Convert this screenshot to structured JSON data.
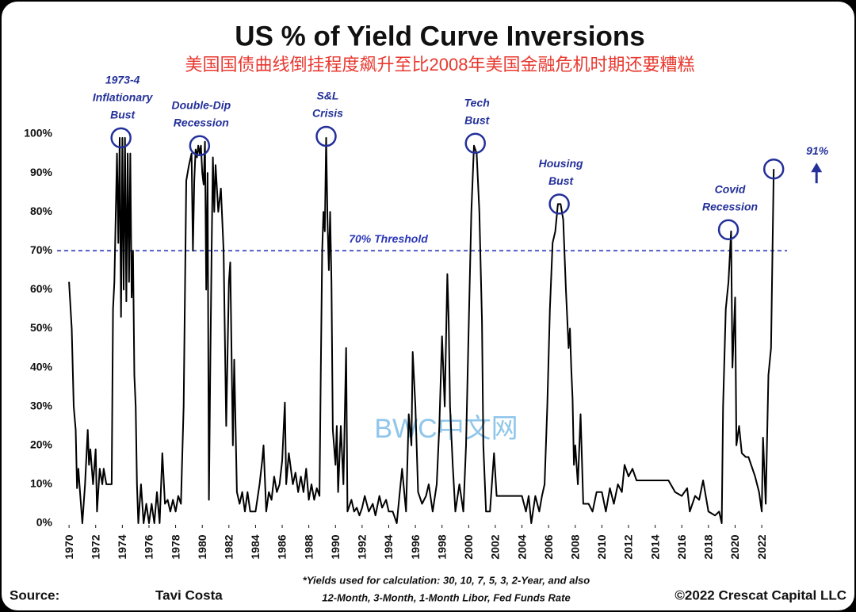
{
  "chart_data": {
    "type": "line",
    "title": "US % of Yield Curve Inversions",
    "subtitle": "美国国债曲线倒挂程度飙升至比2008年美国金融危机时期还要糟糕",
    "watermark": "BWC中文网",
    "source_label": "Source:",
    "author": "Tavi Costa",
    "footnote": [
      "*Yields used for calculation: 30, 10, 7, 5, 3, 2-Year, and also",
      "12-Month, 3-Month, 1-Month Libor, Fed Funds Rate"
    ],
    "copyright": "©2022 Crescat Capital LLC",
    "xlim": [
      1969.1,
      2023.9
    ],
    "xticks": [
      1970,
      1972,
      1974,
      1976,
      1978,
      1980,
      1982,
      1984,
      1986,
      1988,
      1990,
      1992,
      1994,
      1996,
      1998,
      2000,
      2002,
      2004,
      2006,
      2008,
      2010,
      2012,
      2014,
      2016,
      2018,
      2020,
      2022
    ],
    "ylim": [
      0,
      100
    ],
    "yticks": [
      {
        "value": 0,
        "label": "0%"
      },
      {
        "value": 10,
        "label": "10%"
      },
      {
        "value": 20,
        "label": "20%"
      },
      {
        "value": 30,
        "label": "30%"
      },
      {
        "value": 40,
        "label": "40%"
      },
      {
        "value": 50,
        "label": "50%"
      },
      {
        "value": 60,
        "label": "60%"
      },
      {
        "value": 70,
        "label": "70%"
      },
      {
        "value": 80,
        "label": "80%"
      },
      {
        "value": 90,
        "label": "90%"
      },
      {
        "value": 100,
        "label": "100%"
      }
    ],
    "threshold": {
      "value": 70,
      "label": "70% Threshold",
      "color": "#2b37b8"
    },
    "annotation_color": "#23309a",
    "series": [
      {
        "name": "US % of Yield Curve Inversions",
        "color": "#000000",
        "x": [
          1970,
          1970.2,
          1970.35,
          1970.5,
          1970.6,
          1970.7,
          1970.8,
          1971,
          1971.2,
          1971.4,
          1971.5,
          1971.6,
          1971.8,
          1972,
          1972.1,
          1972.3,
          1972.5,
          1972.6,
          1972.8,
          1973,
          1973.2,
          1973.3,
          1973.4,
          1973.5,
          1973.6,
          1973.7,
          1973.8,
          1973.9,
          1974,
          1974.1,
          1974.2,
          1974.3,
          1974.4,
          1974.5,
          1974.6,
          1974.7,
          1974.8,
          1974.9,
          1975,
          1975.1,
          1975.2,
          1975.4,
          1975.6,
          1975.8,
          1976,
          1976.2,
          1976.4,
          1976.6,
          1976.8,
          1977,
          1977.2,
          1977.4,
          1977.6,
          1977.8,
          1978,
          1978.2,
          1978.4,
          1978.6,
          1978.8,
          1979,
          1979.2,
          1979.3,
          1979.4,
          1979.5,
          1979.6,
          1979.7,
          1979.8,
          1979.9,
          1980,
          1980.1,
          1980.2,
          1980.3,
          1980.4,
          1980.5,
          1980.6,
          1980.7,
          1980.8,
          1980.9,
          1981,
          1981.2,
          1981.4,
          1981.6,
          1981.8,
          1982,
          1982.1,
          1982.3,
          1982.4,
          1982.6,
          1982.8,
          1983,
          1983.2,
          1983.4,
          1983.6,
          1983.8,
          1984,
          1984.3,
          1984.5,
          1984.6,
          1984.8,
          1985,
          1985.2,
          1985.4,
          1985.6,
          1985.8,
          1986,
          1986.2,
          1986.3,
          1986.5,
          1986.8,
          1987,
          1987.2,
          1987.4,
          1987.6,
          1987.8,
          1988,
          1988.2,
          1988.4,
          1988.6,
          1988.8,
          1988.9,
          1989,
          1989.1,
          1989.2,
          1989.3,
          1989.4,
          1989.5,
          1989.6,
          1989.7,
          1989.8,
          1990,
          1990.1,
          1990.2,
          1990.4,
          1990.6,
          1990.8,
          1990.9,
          1991.2,
          1991.4,
          1991.6,
          1991.8,
          1992,
          1992.2,
          1992.5,
          1992.8,
          1993,
          1993.3,
          1993.5,
          1993.8,
          1994,
          1994.3,
          1994.6,
          1995,
          1995.3,
          1995.5,
          1995.7,
          1995.8,
          1996,
          1996.2,
          1996.5,
          1996.8,
          1997,
          1997.3,
          1997.6,
          1997.8,
          1998,
          1998.2,
          1998.4,
          1998.5,
          1998.6,
          1998.8,
          1999,
          1999.3,
          1999.6,
          1999.8,
          2000,
          2000.2,
          2000.4,
          2000.6,
          2000.8,
          2001,
          2001.1,
          2001.3,
          2001.6,
          2001.9,
          2002.1,
          2002.4,
          2003,
          2004,
          2004.3,
          2004.5,
          2004.7,
          2005,
          2005.3,
          2005.5,
          2005.7,
          2005.9,
          2006.1,
          2006.3,
          2006.5,
          2006.7,
          2006.9,
          2007.1,
          2007.3,
          2007.5,
          2007.6,
          2007.7,
          2007.8,
          2007.9,
          2008,
          2008.2,
          2008.4,
          2008.6,
          2009,
          2009.3,
          2009.6,
          2010,
          2010.3,
          2010.6,
          2010.9,
          2011.2,
          2011.5,
          2011.7,
          2012,
          2012.3,
          2012.6,
          2013,
          2014,
          2015,
          2015.5,
          2016,
          2016.4,
          2016.6,
          2017,
          2017.3,
          2017.6,
          2018,
          2018.5,
          2018.8,
          2019,
          2019.1,
          2019.3,
          2019.5,
          2019.7,
          2019.8,
          2020,
          2020.1,
          2020.3,
          2020.5,
          2020.8,
          2021,
          2021.5,
          2021.8,
          2022,
          2022.1,
          2022.3,
          2022.5,
          2022.7,
          2022.9
        ],
        "values": [
          62,
          50,
          30,
          24,
          9,
          14,
          9,
          0,
          10,
          24,
          15,
          19,
          10,
          19,
          3,
          14,
          10,
          14,
          10,
          10,
          10,
          55,
          62,
          78,
          95,
          72,
          99,
          53,
          99,
          60,
          99,
          57,
          95,
          62,
          95,
          58,
          70,
          38,
          30,
          10,
          0,
          10,
          0,
          5,
          0,
          5,
          0,
          8,
          0,
          18,
          5,
          6,
          3,
          6,
          3,
          7,
          5,
          30,
          88,
          92,
          95,
          70,
          88,
          96,
          94,
          97,
          95,
          97,
          90,
          87,
          98,
          60,
          90,
          6,
          40,
          70,
          94,
          80,
          92,
          80,
          86,
          70,
          25,
          62,
          67,
          20,
          42,
          8,
          5,
          8,
          3,
          8,
          3,
          3,
          3,
          10,
          16,
          20,
          3,
          8,
          6,
          12,
          8,
          10,
          16,
          31,
          10,
          18,
          10,
          13,
          8,
          12,
          8,
          14,
          6,
          10,
          6,
          9,
          7,
          40,
          70,
          80,
          75,
          99,
          78,
          65,
          80,
          62,
          24,
          15,
          25,
          8,
          25,
          10,
          45,
          3,
          6,
          3,
          4,
          2,
          4,
          7,
          3,
          5,
          2,
          7,
          4,
          6,
          3,
          3,
          0,
          14,
          3,
          28,
          20,
          44,
          30,
          8,
          5,
          7,
          10,
          3,
          10,
          25,
          48,
          30,
          64,
          52,
          30,
          15,
          3,
          10,
          3,
          20,
          50,
          80,
          97,
          95,
          80,
          52,
          20,
          3,
          3,
          18,
          7,
          7,
          7,
          7,
          3,
          7,
          0,
          7,
          3,
          7,
          10,
          30,
          55,
          72,
          75,
          82,
          82,
          78,
          60,
          45,
          50,
          40,
          32,
          15,
          20,
          10,
          28,
          5,
          5,
          3,
          8,
          8,
          3,
          9,
          5,
          10,
          8,
          15,
          12,
          14,
          11,
          11,
          11,
          11,
          8,
          7,
          9,
          3,
          7,
          6,
          11,
          3,
          2,
          3,
          0,
          30,
          55,
          62,
          75,
          40,
          58,
          20,
          25,
          18,
          17,
          17,
          12,
          8,
          3,
          22,
          5,
          38,
          45,
          91
        ]
      }
    ],
    "annotations": [
      {
        "lines": [
          "1973-4",
          "Inflationary",
          "Bust"
        ],
        "x": 1973.9,
        "y": 99
      },
      {
        "lines": [
          "Double-Dip",
          "Recession"
        ],
        "x": 1979.8,
        "y": 97
      },
      {
        "lines": [
          "S&L",
          "Crisis"
        ],
        "x": 1989.3,
        "y": 99.4
      },
      {
        "lines": [
          "Tech",
          "Bust"
        ],
        "x": 2000.5,
        "y": 97.6
      },
      {
        "lines": [
          "Housing",
          "Bust"
        ],
        "x": 2006.8,
        "y": 82
      },
      {
        "lines": [
          "Covid",
          "Recession"
        ],
        "x": 2019.5,
        "y": 75.4
      },
      {
        "lines": [
          "91%"
        ],
        "x": 2022.9,
        "y": 91
      }
    ]
  }
}
